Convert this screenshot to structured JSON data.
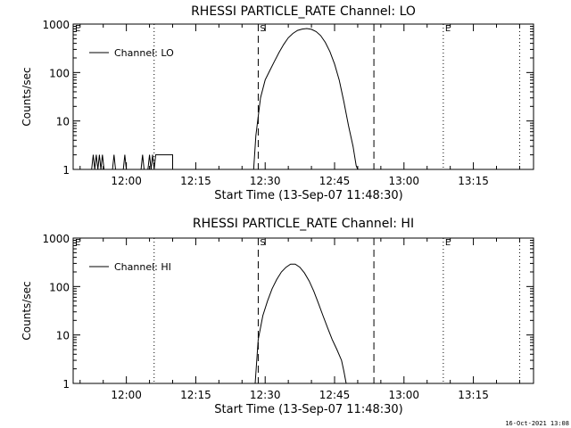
{
  "footer_timestamp": "16-Oct-2021 13:08",
  "colors": {
    "background": "#ffffff",
    "foreground": "#000000"
  },
  "chart_data": [
    {
      "type": "line",
      "title": "RHESSI PARTICLE_RATE Channel: LO",
      "xlabel": "Start Time (13-Sep-07 11:48:30)",
      "ylabel": "Counts/sec",
      "y_scale": "log",
      "ylim": [
        1,
        1000
      ],
      "xlim": [
        "11:48:30",
        "13:28:00"
      ],
      "x_ticks": [
        "12:00",
        "12:15",
        "12:30",
        "12:45",
        "13:00",
        "13:15"
      ],
      "y_ticks": [
        "1",
        "10",
        "100",
        "1000"
      ],
      "legend": {
        "position": "top-left",
        "entries": [
          "Channel: LO"
        ]
      },
      "markers": [
        {
          "label": "E",
          "time": "11:48:30",
          "style": "dotted"
        },
        {
          "label": "",
          "time": "12:06:00",
          "style": "dotted"
        },
        {
          "label": "S",
          "time": "12:28:30",
          "style": "dashed"
        },
        {
          "label": "",
          "time": "12:53:30",
          "style": "dashed"
        },
        {
          "label": "E",
          "time": "13:08:30",
          "style": "dotted"
        },
        {
          "label": "",
          "time": "13:25:00",
          "style": "dotted"
        }
      ],
      "series": [
        {
          "name": "Channel: LO",
          "points": [
            [
              "11:52:30",
              1
            ],
            [
              "11:52:50",
              2
            ],
            [
              "11:53:10",
              1
            ],
            [
              "11:53:30",
              2
            ],
            [
              "11:53:50",
              1
            ],
            [
              "11:54:10",
              2
            ],
            [
              "11:54:30",
              1
            ],
            [
              "11:54:50",
              2
            ],
            [
              "11:55:10",
              1
            ],
            [
              "11:57:00",
              1
            ],
            [
              "11:57:20",
              2
            ],
            [
              "11:57:40",
              1
            ],
            [
              "11:59:20",
              1
            ],
            [
              "11:59:40",
              2
            ],
            [
              "12:00:00",
              1
            ],
            [
              "12:03:10",
              1
            ],
            [
              "12:03:30",
              2
            ],
            [
              "12:03:50",
              1
            ],
            [
              "12:04:40",
              1
            ],
            [
              "12:05:00",
              2
            ],
            [
              "12:05:20",
              1
            ],
            [
              "12:05:40",
              2
            ],
            [
              "12:06:00",
              1
            ],
            [
              "12:06:20",
              2
            ],
            [
              "12:10:00",
              2
            ],
            [
              "12:10:00",
              1
            ],
            [
              "12:27:30",
              1
            ],
            [
              "12:28:00",
              5
            ],
            [
              "12:29:00",
              30
            ],
            [
              "12:30:00",
              70
            ],
            [
              "12:31:00",
              110
            ],
            [
              "12:32:00",
              170
            ],
            [
              "12:33:00",
              260
            ],
            [
              "12:34:00",
              380
            ],
            [
              "12:35:00",
              520
            ],
            [
              "12:36:00",
              640
            ],
            [
              "12:37:00",
              740
            ],
            [
              "12:38:00",
              790
            ],
            [
              "12:39:00",
              810
            ],
            [
              "12:40:00",
              780
            ],
            [
              "12:41:00",
              700
            ],
            [
              "12:42:00",
              580
            ],
            [
              "12:43:00",
              420
            ],
            [
              "12:44:00",
              270
            ],
            [
              "12:45:00",
              150
            ],
            [
              "12:46:00",
              70
            ],
            [
              "12:47:00",
              25
            ],
            [
              "12:48:00",
              8
            ],
            [
              "12:49:00",
              3
            ],
            [
              "12:49:40",
              1.2
            ],
            [
              "12:50:00",
              1
            ]
          ]
        }
      ]
    },
    {
      "type": "line",
      "title": "RHESSI PARTICLE_RATE Channel: HI",
      "xlabel": "Start Time (13-Sep-07 11:48:30)",
      "ylabel": "Counts/sec",
      "y_scale": "log",
      "ylim": [
        1,
        1000
      ],
      "xlim": [
        "11:48:30",
        "13:28:00"
      ],
      "x_ticks": [
        "12:00",
        "12:15",
        "12:30",
        "12:45",
        "13:00",
        "13:15"
      ],
      "y_ticks": [
        "1",
        "10",
        "100",
        "1000"
      ],
      "legend": {
        "position": "top-left",
        "entries": [
          "Channel: HI"
        ]
      },
      "markers": [
        {
          "label": "E",
          "time": "11:48:30",
          "style": "dotted"
        },
        {
          "label": "",
          "time": "12:06:00",
          "style": "dotted"
        },
        {
          "label": "S",
          "time": "12:28:30",
          "style": "dashed"
        },
        {
          "label": "",
          "time": "12:53:30",
          "style": "dashed"
        },
        {
          "label": "E",
          "time": "13:08:30",
          "style": "dotted"
        },
        {
          "label": "",
          "time": "13:25:00",
          "style": "dotted"
        }
      ],
      "series": [
        {
          "name": "Channel: HI",
          "points": [
            [
              "12:27:50",
              1
            ],
            [
              "12:28:30",
              8
            ],
            [
              "12:29:30",
              25
            ],
            [
              "12:30:30",
              50
            ],
            [
              "12:31:30",
              90
            ],
            [
              "12:32:30",
              140
            ],
            [
              "12:33:30",
              200
            ],
            [
              "12:34:30",
              250
            ],
            [
              "12:35:30",
              290
            ],
            [
              "12:36:30",
              290
            ],
            [
              "12:37:30",
              250
            ],
            [
              "12:38:30",
              190
            ],
            [
              "12:39:30",
              130
            ],
            [
              "12:40:30",
              80
            ],
            [
              "12:41:30",
              45
            ],
            [
              "12:42:30",
              25
            ],
            [
              "12:43:30",
              14
            ],
            [
              "12:44:30",
              8
            ],
            [
              "12:45:30",
              5
            ],
            [
              "12:46:30",
              3
            ],
            [
              "12:47:00",
              1.8
            ],
            [
              "12:47:30",
              1
            ]
          ]
        }
      ]
    }
  ]
}
